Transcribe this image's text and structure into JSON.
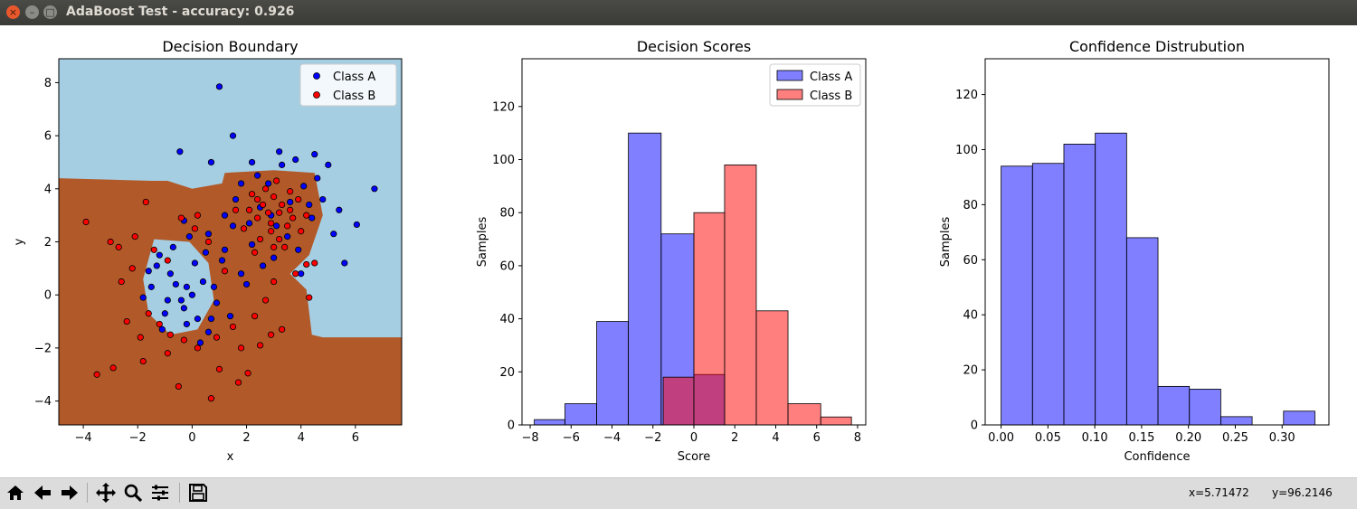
{
  "window": {
    "title": "AdaBoost Test - accuracy: 0.926"
  },
  "status": {
    "x_readout": "x=5.71472",
    "y_readout": "y=96.2146"
  },
  "toolbar": {
    "buttons": [
      "home",
      "back",
      "forward",
      "pan",
      "zoom",
      "configure-subplots",
      "save"
    ]
  },
  "colors": {
    "classA": "#0000ff",
    "classB": "#ff0000",
    "regionA": "#a6cee3",
    "regionB": "#b15928"
  },
  "chart_data": [
    {
      "type": "scatter",
      "title": "Decision Boundary",
      "xlabel": "x",
      "ylabel": "y",
      "xlim": [
        -4.9,
        7.7
      ],
      "ylim": [
        -4.9,
        8.9
      ],
      "xticks": [
        "−4",
        "−2",
        "0",
        "2",
        "4",
        "6"
      ],
      "yticks": [
        "−4",
        "−2",
        "0",
        "2",
        "4",
        "6",
        "8"
      ],
      "xtick_values": [
        -4,
        -2,
        0,
        2,
        4,
        6
      ],
      "ytick_values": [
        -4,
        -2,
        0,
        2,
        4,
        6,
        8
      ],
      "legend": [
        "Class A",
        "Class B"
      ],
      "legend_position": "top-right",
      "series": [
        {
          "name": "Class A",
          "points": [
            [
              1.0,
              7.85
            ],
            [
              -0.45,
              5.4
            ],
            [
              6.7,
              4.0
            ],
            [
              1.5,
              6.0
            ],
            [
              6.05,
              2.65
            ],
            [
              5.6,
              1.2
            ],
            [
              3.8,
              5.1
            ],
            [
              4.5,
              5.3
            ],
            [
              0.7,
              5.0
            ],
            [
              -0.3,
              2.8
            ],
            [
              -1.2,
              1.5
            ],
            [
              -0.8,
              0.8
            ],
            [
              -0.3,
              -0.5
            ],
            [
              0.2,
              -0.9
            ],
            [
              -1.5,
              0.3
            ],
            [
              -1.0,
              -0.7
            ],
            [
              0.8,
              0.3
            ],
            [
              0.6,
              -1.4
            ],
            [
              -0.2,
              -1.1
            ],
            [
              -0.6,
              0.4
            ],
            [
              -0.9,
              -0.2
            ],
            [
              -1.3,
              1.1
            ],
            [
              0.1,
              1.2
            ],
            [
              0.4,
              0.5
            ],
            [
              -0.2,
              0.3
            ],
            [
              1.2,
              1.7
            ],
            [
              0.6,
              2.3
            ],
            [
              1.5,
              2.6
            ],
            [
              2.2,
              1.9
            ],
            [
              2.5,
              3.3
            ],
            [
              2.8,
              4.2
            ],
            [
              3.1,
              2.6
            ],
            [
              3.6,
              3.5
            ],
            [
              4.1,
              4.1
            ],
            [
              4.4,
              2.9
            ],
            [
              3.9,
              1.7
            ],
            [
              2.6,
              1.1
            ],
            [
              1.8,
              0.8
            ],
            [
              1.2,
              3.0
            ],
            [
              4.8,
              3.6
            ],
            [
              5.2,
              2.3
            ],
            [
              3.3,
              4.9
            ],
            [
              2.2,
              5.0
            ],
            [
              1.8,
              4.2
            ],
            [
              4.6,
              4.4
            ],
            [
              5.4,
              3.2
            ],
            [
              3.0,
              1.4
            ],
            [
              2.1,
              2.7
            ],
            [
              -0.7,
              1.8
            ],
            [
              0.9,
              -0.3
            ],
            [
              1.4,
              -0.8
            ],
            [
              -1.8,
              -0.1
            ],
            [
              0.3,
              -1.8
            ],
            [
              -1.1,
              -1.3
            ],
            [
              0.0,
              0.0
            ],
            [
              -0.4,
              -0.2
            ],
            [
              0.5,
              1.6
            ],
            [
              1.1,
              1.3
            ],
            [
              2.9,
              3.0
            ],
            [
              3.5,
              2.2
            ],
            [
              4.3,
              3.4
            ],
            [
              3.2,
              5.4
            ],
            [
              2.4,
              4.5
            ],
            [
              1.6,
              3.6
            ],
            [
              5.0,
              4.9
            ],
            [
              4.0,
              0.8
            ],
            [
              2.0,
              0.4
            ],
            [
              -0.1,
              2.2
            ],
            [
              -1.6,
              0.9
            ],
            [
              0.7,
              -0.9
            ]
          ]
        },
        {
          "name": "Class B",
          "points": [
            [
              -3.9,
              2.75
            ],
            [
              -3.5,
              -3.0
            ],
            [
              -2.9,
              -2.75
            ],
            [
              -1.8,
              -2.5
            ],
            [
              -2.6,
              0.5
            ],
            [
              -1.7,
              3.5
            ],
            [
              -0.5,
              -3.45
            ],
            [
              0.7,
              -3.9
            ],
            [
              1.7,
              -3.3
            ],
            [
              2.05,
              -2.95
            ],
            [
              2.5,
              -1.9
            ],
            [
              3.3,
              -1.3
            ],
            [
              4.3,
              -0.1
            ],
            [
              4.2,
              1.15
            ],
            [
              -2.7,
              1.8
            ],
            [
              -3.0,
              2.0
            ],
            [
              -2.1,
              2.2
            ],
            [
              -1.6,
              -0.7
            ],
            [
              -1.2,
              -1.1
            ],
            [
              -0.8,
              -1.5
            ],
            [
              -0.3,
              -1.7
            ],
            [
              0.2,
              -2.0
            ],
            [
              0.9,
              -1.6
            ],
            [
              1.5,
              -1.2
            ],
            [
              1.8,
              -2.0
            ],
            [
              2.3,
              -0.8
            ],
            [
              2.7,
              -0.2
            ],
            [
              3.0,
              0.5
            ],
            [
              3.2,
              3.1
            ],
            [
              3.5,
              2.6
            ],
            [
              2.9,
              2.4
            ],
            [
              2.6,
              3.4
            ],
            [
              3.0,
              3.7
            ],
            [
              2.4,
              2.9
            ],
            [
              3.3,
              3.4
            ],
            [
              3.7,
              2.9
            ],
            [
              2.8,
              3.1
            ],
            [
              2.1,
              3.2
            ],
            [
              3.9,
              3.6
            ],
            [
              2.5,
              2.1
            ],
            [
              3.2,
              2.1
            ],
            [
              3.6,
              3.9
            ],
            [
              2.2,
              3.8
            ],
            [
              1.9,
              2.5
            ],
            [
              2.7,
              4.0
            ],
            [
              3.1,
              4.3
            ],
            [
              4.0,
              2.4
            ],
            [
              3.4,
              1.8
            ],
            [
              2.3,
              1.6
            ],
            [
              1.6,
              3.2
            ],
            [
              2.9,
              2.7
            ],
            [
              3.6,
              3.2
            ],
            [
              2.4,
              3.6
            ],
            [
              3.0,
              1.8
            ],
            [
              4.2,
              3.0
            ],
            [
              -0.9,
              1.3
            ],
            [
              -0.4,
              2.9
            ],
            [
              0.2,
              3.0
            ],
            [
              0.6,
              2.0
            ],
            [
              -1.4,
              1.7
            ],
            [
              -2.2,
              1.0
            ],
            [
              -1.9,
              -1.6
            ],
            [
              -0.9,
              -2.2
            ],
            [
              1.0,
              -2.8
            ],
            [
              2.9,
              -1.5
            ],
            [
              1.2,
              0.9
            ],
            [
              0.1,
              2.5
            ],
            [
              3.8,
              0.8
            ],
            [
              4.5,
              1.2
            ],
            [
              -2.4,
              -1.0
            ]
          ]
        }
      ]
    },
    {
      "type": "bar",
      "title": "Decision Scores",
      "xlabel": "Score",
      "ylabel": "Samples",
      "xlim": [
        -8.4,
        8.4
      ],
      "ylim": [
        0,
        138
      ],
      "xticks": [
        "−8",
        "−6",
        "−4",
        "−2",
        "0",
        "2",
        "4",
        "6",
        "8"
      ],
      "yticks": [
        "0",
        "20",
        "40",
        "60",
        "80",
        "100",
        "120"
      ],
      "xtick_values": [
        -8,
        -6,
        -4,
        -2,
        0,
        2,
        4,
        6,
        8
      ],
      "ytick_values": [
        0,
        20,
        40,
        60,
        80,
        100,
        120
      ],
      "legend": [
        "Class A",
        "Class B"
      ],
      "legend_position": "top-right",
      "series": [
        {
          "name": "Class A",
          "bin_edges": [
            -7.8,
            -6.3,
            -4.75,
            -3.2,
            -1.6,
            0.0,
            1.5
          ],
          "values": [
            2,
            8,
            39,
            110,
            72,
            19
          ]
        },
        {
          "name": "Class B",
          "bin_edges": [
            -1.5,
            0.0,
            1.5,
            3.05,
            4.6,
            6.2,
            7.7
          ],
          "values": [
            18,
            80,
            98,
            43,
            8,
            3
          ]
        }
      ]
    },
    {
      "type": "bar",
      "title": "Confidence Distrubution",
      "xlabel": "Confidence",
      "ylabel": "Samples",
      "xlim": [
        -0.017,
        0.35
      ],
      "ylim": [
        0,
        133
      ],
      "xticks": [
        "0.00",
        "0.05",
        "0.10",
        "0.15",
        "0.20",
        "0.25",
        "0.30"
      ],
      "yticks": [
        "0",
        "20",
        "40",
        "60",
        "80",
        "100",
        "120"
      ],
      "xtick_values": [
        0,
        0.05,
        0.1,
        0.15,
        0.2,
        0.25,
        0.3
      ],
      "ytick_values": [
        0,
        20,
        40,
        60,
        80,
        100,
        120
      ],
      "series": [
        {
          "name": "",
          "bin_edges": [
            0.0,
            0.0335,
            0.067,
            0.1005,
            0.134,
            0.1675,
            0.201,
            0.2345,
            0.268,
            0.3015,
            0.335
          ],
          "values": [
            94,
            95,
            102,
            106,
            68,
            14,
            13,
            3,
            0,
            5
          ]
        }
      ]
    }
  ]
}
